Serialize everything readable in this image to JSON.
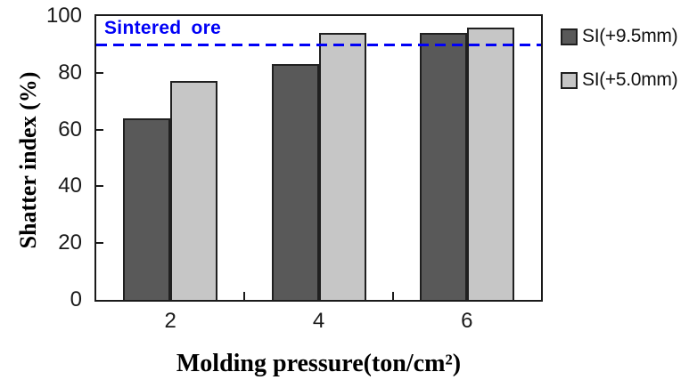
{
  "chart_data": {
    "type": "bar",
    "categories": [
      "2",
      "4",
      "6"
    ],
    "series": [
      {
        "name": "SI(+9.5mm)",
        "values": [
          64,
          83,
          94
        ],
        "color": "#595959"
      },
      {
        "name": "SI(+5.0mm)",
        "values": [
          77,
          94,
          96
        ],
        "color": "#c6c6c6"
      }
    ],
    "xlabel": "Molding pressure(ton/cm²)",
    "ylabel": "Shatter index (%)",
    "ylim": [
      0,
      100
    ],
    "yticks": [
      0,
      20,
      40,
      60,
      80,
      100
    ],
    "grid": false,
    "legend_position": "right-outside",
    "bar_outline_color": "#202020",
    "axis_color": "#1a1a1a",
    "reference_line": {
      "value": 90,
      "label": "Sintered ore",
      "color": "#0000f6",
      "style": "dashed"
    }
  }
}
